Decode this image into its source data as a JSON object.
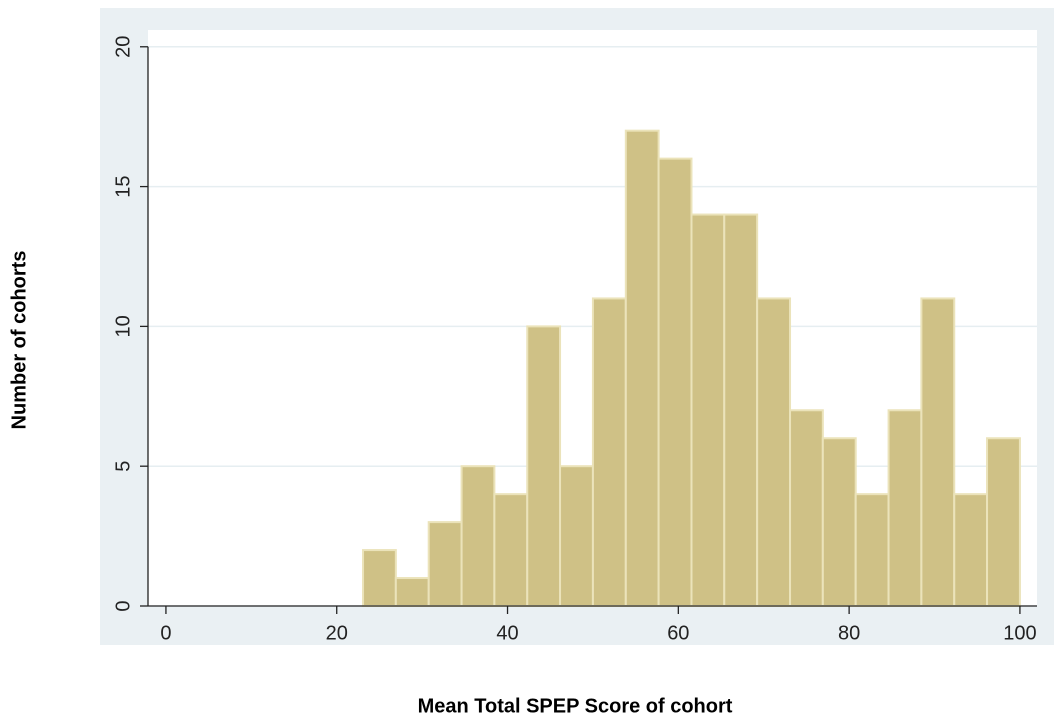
{
  "chart_data": {
    "type": "histogram",
    "xlabel": "Mean Total SPEP Score of cohort",
    "ylabel": "Number of cohorts",
    "bins": [
      23.08,
      26.92,
      30.77,
      34.62,
      38.46,
      42.31,
      46.15,
      50.0,
      53.85,
      57.69,
      61.54,
      65.38,
      69.23,
      73.08,
      76.92,
      80.77,
      84.62,
      88.46,
      92.31,
      96.15,
      100
    ],
    "values": [
      2,
      1,
      3,
      5,
      4,
      10,
      5,
      11,
      17,
      16,
      14,
      14,
      11,
      7,
      6,
      4,
      7,
      11,
      4,
      6
    ],
    "color": "#cfc186",
    "xlim": [
      -2.1,
      102
    ],
    "xticks": [
      0,
      20,
      40,
      60,
      80,
      100
    ],
    "ylim": [
      0,
      20.6
    ],
    "yticks": [
      0,
      5,
      10,
      15,
      20
    ],
    "grid": true
  }
}
